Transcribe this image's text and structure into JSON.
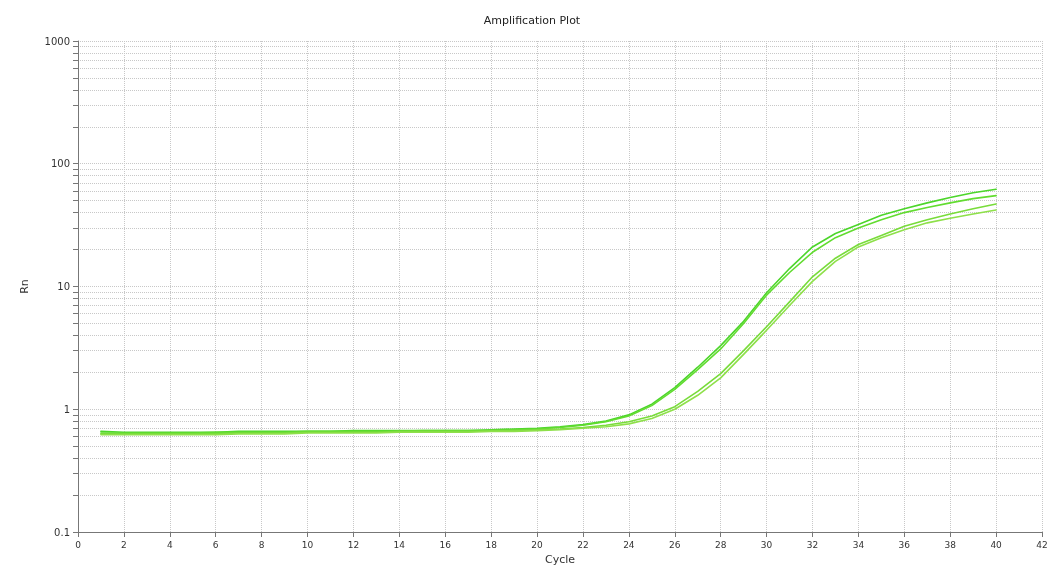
{
  "chart_data": {
    "type": "line",
    "title": "Amplification Plot",
    "xlabel": "Cycle",
    "ylabel": "Rn",
    "x": [
      1,
      2,
      3,
      4,
      5,
      6,
      7,
      8,
      9,
      10,
      11,
      12,
      13,
      14,
      15,
      16,
      17,
      18,
      19,
      20,
      21,
      22,
      23,
      24,
      25,
      26,
      27,
      28,
      29,
      30,
      31,
      32,
      33,
      34,
      35,
      36,
      37,
      38,
      39,
      40
    ],
    "series": [
      {
        "color": "#4cd62a",
        "values": [
          0.66,
          0.65,
          0.65,
          0.65,
          0.65,
          0.65,
          0.66,
          0.66,
          0.66,
          0.66,
          0.66,
          0.67,
          0.67,
          0.67,
          0.67,
          0.67,
          0.67,
          0.68,
          0.69,
          0.7,
          0.72,
          0.75,
          0.8,
          0.9,
          1.1,
          1.5,
          2.2,
          3.3,
          5.2,
          8.9,
          14,
          21,
          27,
          32,
          38,
          43,
          48,
          53,
          58,
          62
        ]
      },
      {
        "color": "#62dc30",
        "values": [
          0.64,
          0.64,
          0.64,
          0.64,
          0.64,
          0.65,
          0.65,
          0.65,
          0.65,
          0.66,
          0.66,
          0.66,
          0.66,
          0.66,
          0.67,
          0.67,
          0.67,
          0.67,
          0.68,
          0.69,
          0.71,
          0.74,
          0.79,
          0.88,
          1.07,
          1.45,
          2.1,
          3.1,
          5,
          8.5,
          13,
          19,
          25,
          30,
          35,
          40,
          44,
          48,
          52,
          55
        ]
      },
      {
        "color": "#78dc3a",
        "values": [
          0.63,
          0.63,
          0.63,
          0.63,
          0.63,
          0.63,
          0.64,
          0.64,
          0.64,
          0.65,
          0.65,
          0.65,
          0.65,
          0.66,
          0.66,
          0.66,
          0.66,
          0.67,
          0.67,
          0.68,
          0.69,
          0.71,
          0.74,
          0.79,
          0.88,
          1.05,
          1.4,
          1.95,
          3,
          4.7,
          7.5,
          12,
          17,
          22,
          26,
          31,
          35,
          39,
          43,
          47
        ]
      },
      {
        "color": "#8ee04a",
        "values": [
          0.62,
          0.62,
          0.62,
          0.62,
          0.62,
          0.62,
          0.63,
          0.63,
          0.63,
          0.64,
          0.64,
          0.64,
          0.64,
          0.65,
          0.65,
          0.65,
          0.65,
          0.66,
          0.66,
          0.67,
          0.68,
          0.7,
          0.72,
          0.76,
          0.84,
          1,
          1.3,
          1.8,
          2.8,
          4.4,
          7,
          11,
          16,
          21,
          25,
          29,
          33,
          36,
          39,
          42
        ]
      }
    ],
    "xlim": [
      0,
      42
    ],
    "xticks": [
      0,
      2,
      4,
      6,
      8,
      10,
      12,
      14,
      16,
      18,
      20,
      22,
      24,
      26,
      28,
      30,
      32,
      34,
      36,
      38,
      40,
      42
    ],
    "log": "y",
    "ylim": [
      0.1,
      1000
    ],
    "yticks": [
      0.1,
      {
        "value": 0.2,
        "label": null
      },
      {
        "value": 0.3,
        "label": null
      },
      {
        "value": 0.4,
        "label": null
      },
      {
        "value": 0.5,
        "label": null
      },
      {
        "value": 0.6,
        "label": null
      },
      {
        "value": 0.7,
        "label": null
      },
      {
        "value": 0.8,
        "label": null
      },
      {
        "value": 0.9,
        "label": null
      },
      1,
      {
        "value": 2,
        "label": null
      },
      {
        "value": 3,
        "label": null
      },
      {
        "value": 4,
        "label": null
      },
      {
        "value": 5,
        "label": null
      },
      {
        "value": 6,
        "label": null
      },
      {
        "value": 7,
        "label": null
      },
      {
        "value": 8,
        "label": null
      },
      {
        "value": 9,
        "label": null
      },
      10,
      {
        "value": 20,
        "label": null
      },
      {
        "value": 30,
        "label": null
      },
      {
        "value": 40,
        "label": null
      },
      {
        "value": 50,
        "label": null
      },
      {
        "value": 60,
        "label": null
      },
      {
        "value": 70,
        "label": null
      },
      {
        "value": 80,
        "label": null
      },
      {
        "value": 90,
        "label": null
      },
      100,
      {
        "value": 200,
        "label": null
      },
      {
        "value": 300,
        "label": null
      },
      {
        "value": 400,
        "label": null
      },
      {
        "value": 500,
        "label": null
      },
      {
        "value": 600,
        "label": null
      },
      {
        "value": 700,
        "label": null
      },
      {
        "value": 800,
        "label": null
      },
      {
        "value": 900,
        "label": null
      },
      1000
    ],
    "grid": true,
    "marker": "none",
    "line_style": "solid"
  }
}
